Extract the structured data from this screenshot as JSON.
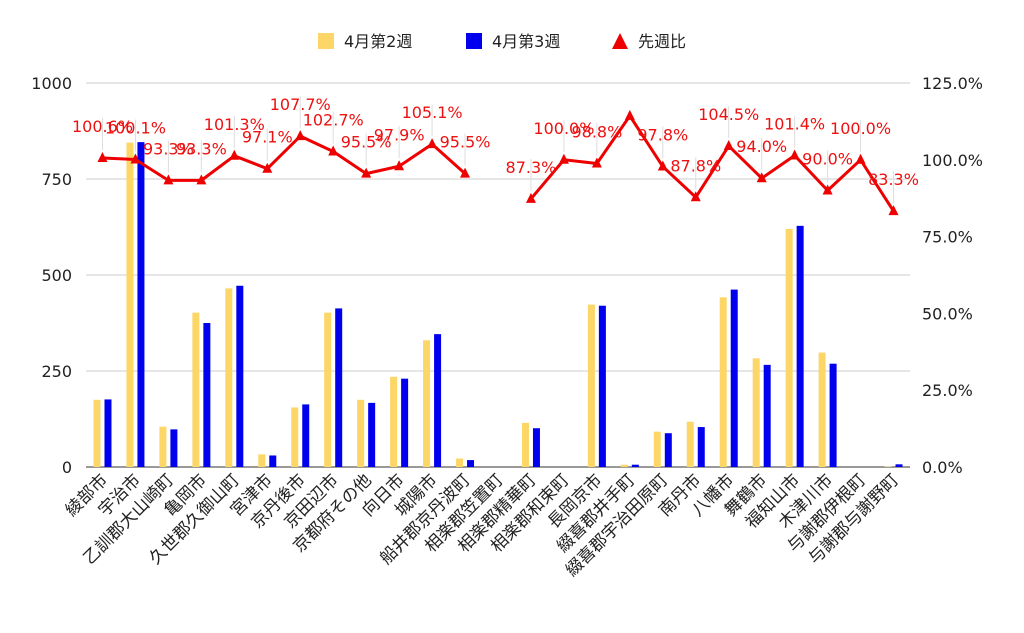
{
  "chart_data": {
    "type": "bar",
    "categories": [
      "綾部市",
      "宇治市",
      "乙訓郡大山崎町",
      "亀岡市",
      "久世郡久御山町",
      "宮津市",
      "京丹後市",
      "京田辺市",
      "京都府その他",
      "向日市",
      "城陽市",
      "船井郡京丹波町",
      "相楽郡笠置町",
      "相楽郡精華町",
      "相楽郡和束町",
      "長岡京市",
      "綴喜郡井手町",
      "綴喜郡宇治田原町",
      "南丹市",
      "八幡市",
      "舞鶴市",
      "福知山市",
      "木津川市",
      "与謝郡伊根町",
      "与謝郡与謝野町"
    ],
    "series": [
      {
        "name": "4月第2週",
        "type": "bar",
        "axis": "left",
        "color": "#fcd667",
        "values": [
          175,
          845,
          105,
          402,
          465,
          33,
          155,
          402,
          175,
          235,
          330,
          22,
          0,
          115,
          0,
          423,
          6,
          92,
          118,
          442,
          283,
          620,
          298,
          0,
          1
        ]
      },
      {
        "name": "4月第3週",
        "type": "bar",
        "axis": "left",
        "color": "#0000ee",
        "values": [
          176,
          846,
          98,
          375,
          472,
          30,
          163,
          413,
          167,
          230,
          346,
          18,
          0,
          101,
          0,
          420,
          6,
          88,
          104,
          462,
          266,
          628,
          269,
          0,
          7
        ]
      },
      {
        "name": "先週比",
        "type": "line",
        "axis": "right",
        "color": "#ee0000",
        "values": [
          100.6,
          100.1,
          93.3,
          93.3,
          101.3,
          97.1,
          107.7,
          102.7,
          95.5,
          97.9,
          105.1,
          95.5,
          null,
          87.3,
          100.0,
          98.8,
          114.3,
          97.8,
          87.8,
          104.5,
          94.0,
          101.4,
          90.0,
          100.0,
          83.3
        ],
        "labels": [
          "100.6%",
          "100.1%",
          "93.3%",
          "93.3%",
          "101.3%",
          "97.1%",
          "107.7%",
          "102.7%",
          "95.5%",
          "97.9%",
          "105.1%",
          "95.5%",
          "",
          "87.3%",
          "100.0%",
          "98.8%",
          "",
          "97.8%",
          "87.8%",
          "104.5%",
          "94.0%",
          "101.4%",
          "90.0%",
          "100.0%",
          "83.3%"
        ]
      }
    ],
    "left_axis": {
      "min": 0,
      "max": 1000,
      "ticks": [
        "0",
        "250",
        "500",
        "750",
        "1000"
      ]
    },
    "right_axis": {
      "min": 0,
      "max": 125,
      "ticks": [
        "0.0%",
        "25.0%",
        "50.0%",
        "75.0%",
        "100.0%",
        "125.0%"
      ]
    },
    "legend_position": "top-center",
    "grid": true
  }
}
